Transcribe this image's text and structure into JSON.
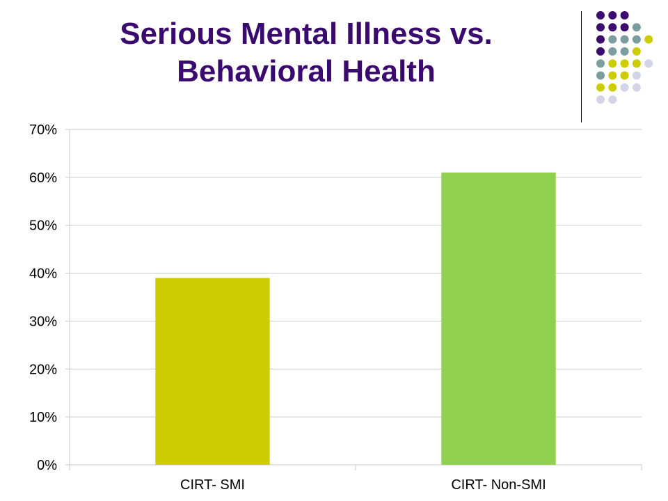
{
  "slide": {
    "title_line1": "Serious Mental Illness vs.",
    "title_line2": "Behavioral Health"
  },
  "decoration": {
    "name": "dot-grid-logo",
    "colors": {
      "purple": "#3b0a6e",
      "teal": "#7a9ea0",
      "olive": "#cccc00",
      "lavender": "#d4d4e8"
    },
    "rows": [
      [
        "purple",
        "purple",
        "purple",
        null,
        null
      ],
      [
        "purple",
        "purple",
        "purple",
        "teal",
        null
      ],
      [
        "purple",
        "teal",
        "teal",
        "teal",
        "olive"
      ],
      [
        "purple",
        "teal",
        "teal",
        "olive",
        null
      ],
      [
        "teal",
        "olive",
        "olive",
        "olive",
        "lavender"
      ],
      [
        "teal",
        "olive",
        "olive",
        "lavender",
        null
      ],
      [
        "olive",
        "olive",
        "lavender",
        "lavender",
        null
      ],
      [
        "lavender",
        "lavender",
        null,
        null,
        null
      ]
    ]
  },
  "chart_data": {
    "type": "bar",
    "categories": [
      "CIRT- SMI",
      "CIRT- Non-SMI"
    ],
    "values": [
      39,
      61
    ],
    "colors": [
      "#cccc00",
      "#92d050"
    ],
    "title": "",
    "xlabel": "",
    "ylabel": "",
    "ylim": [
      0,
      70
    ],
    "yticks": [
      0,
      10,
      20,
      30,
      40,
      50,
      60,
      70
    ],
    "ytick_labels": [
      "0%",
      "10%",
      "20%",
      "30%",
      "40%",
      "50%",
      "60%",
      "70%"
    ],
    "grid": true,
    "legend": "none",
    "gridline_color": "#c8c8c8"
  }
}
